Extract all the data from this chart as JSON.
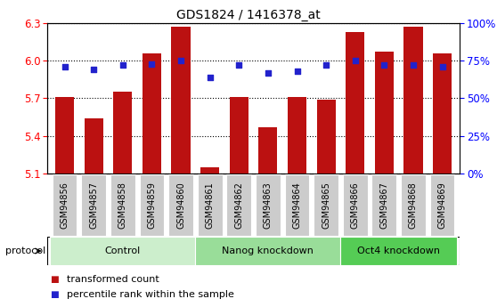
{
  "title": "GDS1824 / 1416378_at",
  "samples": [
    "GSM94856",
    "GSM94857",
    "GSM94858",
    "GSM94859",
    "GSM94860",
    "GSM94861",
    "GSM94862",
    "GSM94863",
    "GSM94864",
    "GSM94865",
    "GSM94866",
    "GSM94867",
    "GSM94868",
    "GSM94869"
  ],
  "bar_values": [
    5.71,
    5.54,
    5.75,
    6.06,
    6.27,
    5.15,
    5.71,
    5.47,
    5.71,
    5.69,
    6.23,
    6.07,
    6.27,
    6.06
  ],
  "dot_values": [
    71,
    69,
    72,
    73,
    75,
    64,
    72,
    67,
    68,
    72,
    75,
    72,
    72,
    71
  ],
  "ylim_left": [
    5.1,
    6.3
  ],
  "ylim_right": [
    0,
    100
  ],
  "yticks_left": [
    5.1,
    5.4,
    5.7,
    6.0,
    6.3
  ],
  "yticks_right": [
    0,
    25,
    50,
    75,
    100
  ],
  "ytick_labels_right": [
    "0%",
    "25%",
    "50%",
    "75%",
    "100%"
  ],
  "bar_color": "#BB1111",
  "dot_color": "#2222CC",
  "groups": [
    {
      "label": "Control",
      "start": 0,
      "end": 5,
      "color": "#cceecc"
    },
    {
      "label": "Nanog knockdown",
      "start": 5,
      "end": 10,
      "color": "#99dd99"
    },
    {
      "label": "Oct4 knockdown",
      "start": 10,
      "end": 14,
      "color": "#55cc55"
    }
  ],
  "protocol_label": "protocol",
  "legend_bar_label": "transformed count",
  "legend_dot_label": "percentile rank within the sample",
  "title_fontsize": 10,
  "axis_fontsize": 8.5,
  "tick_label_fontsize": 7,
  "group_fontsize": 8,
  "legend_fontsize": 8
}
